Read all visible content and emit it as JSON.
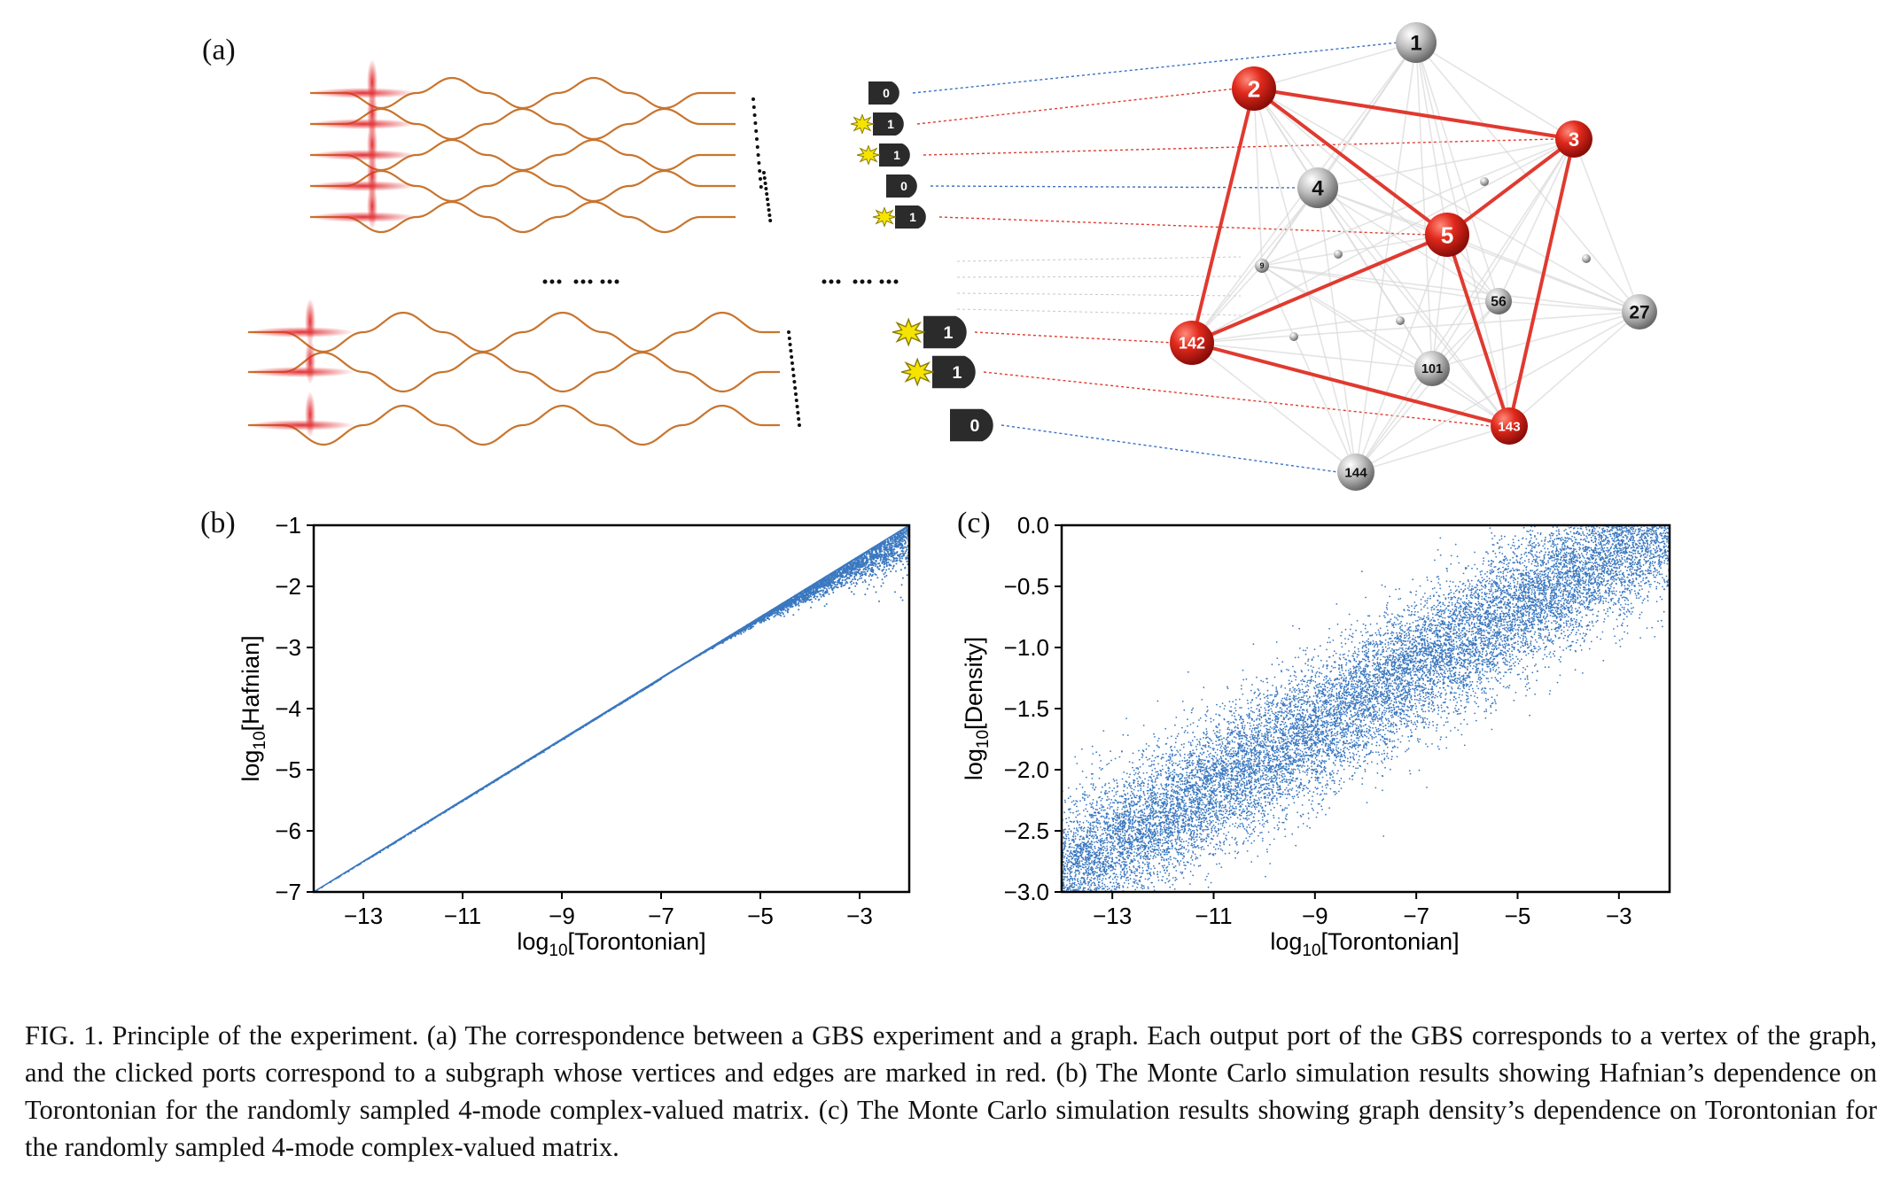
{
  "panels": {
    "a": {
      "label": "(a)"
    },
    "b": {
      "label": "(b)"
    },
    "c": {
      "label": "(c)"
    }
  },
  "detectors": [
    {
      "value": "0",
      "clicked": false
    },
    {
      "value": "1",
      "clicked": true
    },
    {
      "value": "1",
      "clicked": true
    },
    {
      "value": "0",
      "clicked": false
    },
    {
      "value": "1",
      "clicked": true
    },
    {
      "value": "1",
      "clicked": true
    },
    {
      "value": "1",
      "clicked": true
    },
    {
      "value": "0",
      "clicked": false
    }
  ],
  "graph": {
    "vertices": [
      {
        "id": "1",
        "selected": false
      },
      {
        "id": "2",
        "selected": true
      },
      {
        "id": "3",
        "selected": true
      },
      {
        "id": "4",
        "selected": false
      },
      {
        "id": "5",
        "selected": true
      },
      {
        "id": "9",
        "selected": false
      },
      {
        "id": "56",
        "selected": false
      },
      {
        "id": "27",
        "selected": false
      },
      {
        "id": "142",
        "selected": true
      },
      {
        "id": "101",
        "selected": false
      },
      {
        "id": "143",
        "selected": true
      },
      {
        "id": "144",
        "selected": false
      }
    ],
    "red_edges": [
      [
        "2",
        "3"
      ],
      [
        "2",
        "5"
      ],
      [
        "3",
        "5"
      ],
      [
        "2",
        "142"
      ],
      [
        "5",
        "142"
      ],
      [
        "5",
        "143"
      ],
      [
        "3",
        "143"
      ],
      [
        "142",
        "143"
      ]
    ],
    "colors": {
      "selected": "#d7261e",
      "unselected": "#9a9a9a",
      "red_edge": "#e03a2f",
      "grey_edge": "#d9d9d9",
      "waveguide": "#c8752e"
    }
  },
  "chart_data": [
    {
      "type": "scatter",
      "panel": "b",
      "xlabel": "log10[Torontonian]",
      "ylabel": "log10[Hafnian]",
      "xlim": [
        -14,
        -2
      ],
      "ylim": [
        -7,
        -1
      ],
      "xticks": [
        "-13",
        "-11",
        "-9",
        "-7",
        "-5",
        "-3"
      ],
      "yticks": [
        "-1",
        "-2",
        "-3",
        "-4",
        "-5",
        "-6",
        "-7"
      ],
      "relation": "y ≈ 0.5·x upper boundary line from (-14,-7) to (-2,-1); points fall on or below it, spreading downward for x > -6",
      "color": "#3a78c0"
    },
    {
      "type": "scatter",
      "panel": "c",
      "xlabel": "log10[Torontonian]",
      "ylabel": "log10[Density]",
      "xlim": [
        -14,
        -2
      ],
      "ylim": [
        -3.0,
        0.0
      ],
      "xticks": [
        "-13",
        "-11",
        "-9",
        "-7",
        "-5",
        "-3"
      ],
      "yticks": [
        "0.0",
        "-0.5",
        "-1.0",
        "-1.5",
        "-2.0",
        "-2.5",
        "-3.0"
      ],
      "relation": "dense band, y ≈ 0.24·x + 0.55 with spread ≈ ±0.3",
      "color": "#3a78c0"
    }
  ],
  "caption": {
    "text": "FIG. 1. Principle of the experiment. (a) The correspondence between a GBS experiment and a graph. Each output port of the GBS corresponds to a vertex of the graph, and the clicked ports correspond to a subgraph whose vertices and edges are marked in red. (b) The Monte Carlo simulation results showing Hafnian’s dependence on Torontonian for the randomly sampled 4-mode complex-valued matrix. (c) The Monte Carlo simulation results showing graph density’s dependence on Torontonian for the randomly sampled 4-mode complex-valued matrix."
  }
}
